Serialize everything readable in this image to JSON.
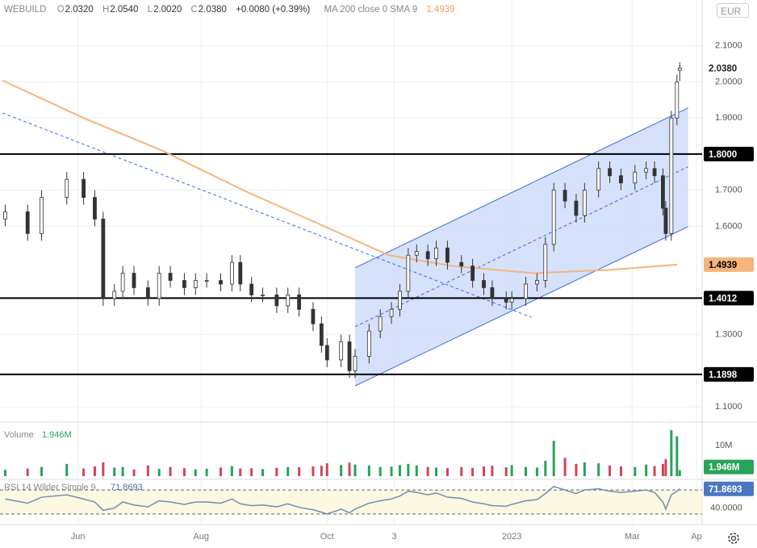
{
  "chart_data": {
    "type": "candlestick",
    "symbol": "WEBUILD",
    "header": {
      "o_label": "O",
      "open": "2.0320",
      "h_label": "H",
      "high": "2.0540",
      "l_label": "L",
      "low": "2.0020",
      "c_label": "C",
      "close": "2.0380",
      "change": "+0.0080 (+0.39%)",
      "study": "MA 200 close 0 SMA 9",
      "study_value": "1.4939"
    },
    "currency": "EUR",
    "xlim": [
      0,
      250
    ],
    "xticks": [
      {
        "value": 27,
        "label": "Jun"
      },
      {
        "value": 71,
        "label": "Aug"
      },
      {
        "value": 116,
        "label": "Oct"
      },
      {
        "value": 140,
        "label": "3"
      },
      {
        "value": 182,
        "label": "2023"
      },
      {
        "value": 225,
        "label": "Mar"
      },
      {
        "value": 248,
        "label": "Ap"
      }
    ],
    "ylim": [
      1.06,
      2.22
    ],
    "yticks": [
      {
        "value": 2.1,
        "label": "2.1000"
      },
      {
        "value": 2.0,
        "label": "2.0000"
      },
      {
        "value": 1.9,
        "label": "1.9000"
      },
      {
        "value": 1.7,
        "label": "1.7000"
      },
      {
        "value": 1.6,
        "label": "1.6000"
      },
      {
        "value": 1.3,
        "label": "1.3000"
      },
      {
        "value": 1.1,
        "label": "1.1000"
      }
    ],
    "grid": true,
    "x": [
      1,
      9,
      14,
      23,
      29,
      33,
      36,
      40,
      43,
      47,
      52,
      56,
      60,
      65,
      69,
      73,
      78,
      82,
      85,
      89,
      93,
      98,
      102,
      106,
      111,
      114,
      116,
      121,
      124,
      126,
      131,
      135,
      139,
      142,
      145,
      148,
      152,
      155,
      159,
      164,
      168,
      172,
      175,
      180,
      182,
      187,
      191,
      194,
      197,
      201,
      205,
      208,
      213,
      217,
      221,
      226,
      230,
      233,
      236,
      237,
      239,
      241,
      242
    ],
    "open": [
      1.62,
      1.64,
      1.58,
      1.68,
      1.73,
      1.68,
      1.62,
      1.4,
      1.42,
      1.47,
      1.43,
      1.4,
      1.47,
      1.45,
      1.43,
      1.45,
      1.45,
      1.44,
      1.5,
      1.44,
      1.41,
      1.41,
      1.38,
      1.41,
      1.37,
      1.33,
      1.27,
      1.23,
      1.28,
      1.2,
      1.24,
      1.31,
      1.35,
      1.37,
      1.42,
      1.52,
      1.53,
      1.51,
      1.54,
      1.5,
      1.49,
      1.45,
      1.43,
      1.4,
      1.39,
      1.4,
      1.44,
      1.45,
      1.55,
      1.7,
      1.67,
      1.63,
      1.7,
      1.76,
      1.74,
      1.72,
      1.75,
      1.76,
      1.74,
      1.65,
      1.58,
      1.9,
      2.032
    ],
    "high": [
      1.66,
      1.66,
      1.7,
      1.75,
      1.75,
      1.7,
      1.64,
      1.44,
      1.49,
      1.49,
      1.45,
      1.49,
      1.49,
      1.47,
      1.47,
      1.47,
      1.47,
      1.52,
      1.52,
      1.46,
      1.43,
      1.43,
      1.43,
      1.43,
      1.39,
      1.35,
      1.29,
      1.3,
      1.3,
      1.26,
      1.33,
      1.37,
      1.39,
      1.44,
      1.54,
      1.55,
      1.55,
      1.56,
      1.56,
      1.52,
      1.51,
      1.47,
      1.45,
      1.42,
      1.42,
      1.46,
      1.47,
      1.57,
      1.72,
      1.72,
      1.69,
      1.72,
      1.78,
      1.78,
      1.76,
      1.77,
      1.78,
      1.78,
      1.76,
      1.67,
      1.92,
      2.02,
      2.054
    ],
    "low": [
      1.6,
      1.56,
      1.56,
      1.66,
      1.66,
      1.6,
      1.38,
      1.38,
      1.4,
      1.41,
      1.38,
      1.38,
      1.43,
      1.41,
      1.41,
      1.43,
      1.42,
      1.42,
      1.42,
      1.39,
      1.39,
      1.36,
      1.36,
      1.35,
      1.31,
      1.25,
      1.21,
      1.21,
      1.18,
      1.18,
      1.22,
      1.29,
      1.33,
      1.35,
      1.4,
      1.5,
      1.49,
      1.49,
      1.48,
      1.47,
      1.43,
      1.41,
      1.38,
      1.37,
      1.37,
      1.38,
      1.42,
      1.43,
      1.53,
      1.65,
      1.61,
      1.61,
      1.68,
      1.72,
      1.7,
      1.7,
      1.73,
      1.72,
      1.63,
      1.56,
      1.56,
      1.88,
      2.002
    ],
    "close": [
      1.64,
      1.58,
      1.68,
      1.73,
      1.68,
      1.62,
      1.4,
      1.42,
      1.47,
      1.43,
      1.4,
      1.47,
      1.45,
      1.43,
      1.45,
      1.45,
      1.44,
      1.5,
      1.44,
      1.41,
      1.41,
      1.38,
      1.41,
      1.37,
      1.33,
      1.27,
      1.23,
      1.28,
      1.2,
      1.24,
      1.31,
      1.35,
      1.37,
      1.42,
      1.52,
      1.53,
      1.51,
      1.54,
      1.5,
      1.49,
      1.45,
      1.43,
      1.4,
      1.39,
      1.4,
      1.44,
      1.45,
      1.55,
      1.7,
      1.67,
      1.63,
      1.7,
      1.76,
      1.74,
      1.72,
      1.75,
      1.76,
      1.74,
      1.65,
      1.58,
      1.9,
      2.0,
      2.038
    ],
    "last_price": {
      "value": 2.038,
      "label": "2.0380"
    },
    "candle_color": "#333333",
    "ma": {
      "name": "MA 200",
      "color": "#f5b57a",
      "x": [
        0,
        29,
        57,
        86,
        115,
        138,
        161,
        190,
        218,
        241
      ],
      "values": [
        2.004,
        1.9,
        1.81,
        1.7,
        1.6,
        1.52,
        1.49,
        1.47,
        1.48,
        1.4939
      ],
      "last_label": "1.4939"
    },
    "levels": [
      {
        "value": 1.8,
        "label": "1.8000"
      },
      {
        "value": 1.4012,
        "label": "1.4012"
      },
      {
        "value": 1.1898,
        "label": "1.1898"
      }
    ],
    "channel": {
      "x": [
        126,
        245
      ],
      "upper": [
        1.485,
        1.928
      ],
      "lower": [
        1.158,
        1.599
      ],
      "middle": [
        1.322,
        1.765
      ],
      "color": "#3b6be0",
      "fill": "#cfdcfb"
    },
    "trendline": {
      "x": [
        0,
        189
      ],
      "values": [
        1.914,
        1.348
      ],
      "color": "#3b6be0"
    },
    "volume": {
      "name": "Volume",
      "ylim": [
        0,
        15
      ],
      "yticks": [
        {
          "value": 10,
          "label": "10M"
        }
      ],
      "up_color": "#27a35a",
      "down_color": "#d2455a",
      "values": [
        2.1,
        2.5,
        3,
        4,
        2.5,
        3.2,
        4.5,
        2.8,
        3,
        2.2,
        3.5,
        2.4,
        3,
        2.6,
        2.2,
        2.4,
        2.8,
        3.3,
        2.5,
        2.6,
        2.3,
        2.7,
        3,
        2.9,
        3.2,
        3.4,
        4.2,
        3.6,
        4.4,
        3.8,
        3.5,
        3,
        3.1,
        3.6,
        4,
        3.5,
        3,
        2.8,
        2.6,
        3,
        2.7,
        3.2,
        3.4,
        2.9,
        3.6,
        3,
        2.8,
        5,
        11.5,
        6,
        4,
        4.5,
        4.2,
        3.5,
        3.2,
        3,
        3.8,
        3.3,
        4,
        5.5,
        15,
        13,
        1.946
      ],
      "last_label": "1.946M"
    },
    "rsi": {
      "name": "RSI 14 Wilder Simple 9",
      "color": "#6f8fb5",
      "ylim": [
        15,
        85
      ],
      "levels": [
        70,
        30
      ],
      "yticks": [
        {
          "value": 40,
          "label": "40.0000"
        }
      ],
      "values": [
        55,
        48,
        58,
        62,
        55,
        50,
        36,
        40,
        50,
        45,
        42,
        52,
        50,
        46,
        50,
        50,
        48,
        55,
        47,
        44,
        45,
        42,
        47,
        41,
        37,
        33,
        30,
        38,
        32,
        38,
        48,
        52,
        55,
        60,
        68,
        66,
        62,
        65,
        58,
        56,
        50,
        47,
        44,
        43,
        46,
        52,
        54,
        64,
        76,
        70,
        64,
        70,
        72,
        68,
        66,
        68,
        70,
        66,
        50,
        38,
        62,
        68,
        71.8693
      ],
      "last_label": "71.8693"
    }
  }
}
